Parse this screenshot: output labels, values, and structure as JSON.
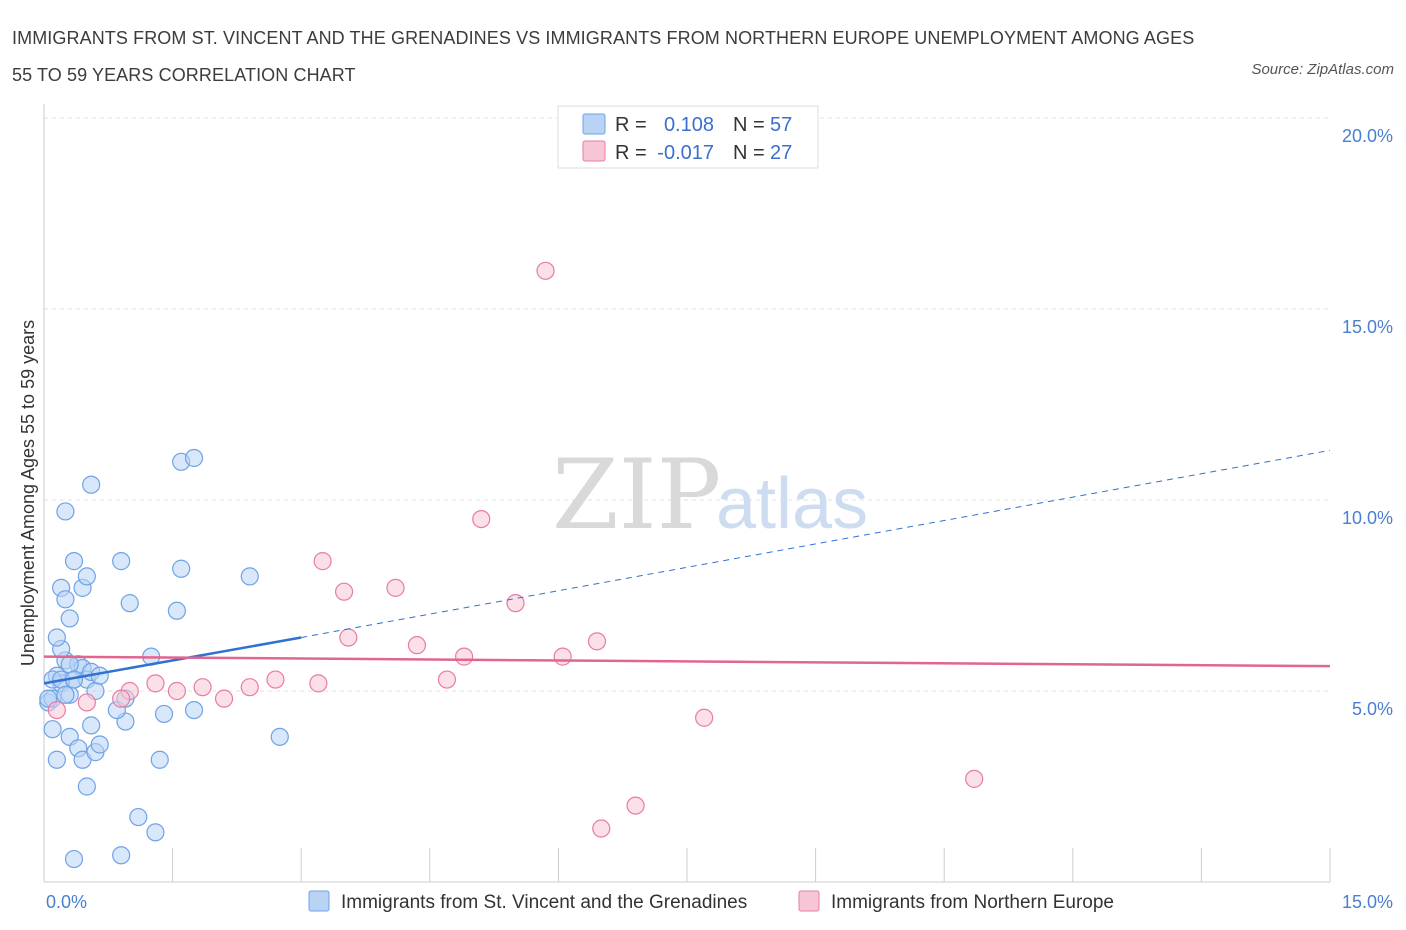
{
  "title": "IMMIGRANTS FROM ST. VINCENT AND THE GRENADINES VS IMMIGRANTS FROM NORTHERN EUROPE UNEMPLOYMENT AMONG AGES 55 TO 59 YEARS CORRELATION CHART",
  "source": "Source: ZipAtlas.com",
  "watermark": {
    "zip": "ZIP",
    "atlas": "atlas"
  },
  "colors": {
    "blue": "#6ea3e6",
    "blue_fill": "#b9d3f5",
    "pink": "#e87ca3",
    "pink_fill": "#f7c6d6",
    "blue_line": "#2f72d0",
    "pink_line": "#e0658f"
  },
  "legend": {
    "r_label": "R =",
    "n_label": "N =",
    "blue": {
      "r": "0.108",
      "n": "57"
    },
    "pink": {
      "r": "-0.017",
      "n": "27"
    }
  },
  "bottom_legend": {
    "blue": "Immigrants from St. Vincent and the Grenadines",
    "pink": "Immigrants from Northern Europe"
  },
  "chart_data": {
    "type": "scatter",
    "title": "IMMIGRANTS FROM ST. VINCENT AND THE GRENADINES VS IMMIGRANTS FROM NORTHERN EUROPE UNEMPLOYMENT AMONG AGES 55 TO 59 YEARS CORRELATION CHART",
    "xlabel": "",
    "ylabel": "Unemployment Among Ages 55 to 59 years",
    "xlim": [
      0,
      15
    ],
    "ylim": [
      0,
      20
    ],
    "x_tick_labels": {
      "min": "0.0%",
      "max": "15.0%"
    },
    "y_ticks": [
      {
        "value": 5,
        "label": "5.0%"
      },
      {
        "value": 10,
        "label": "10.0%"
      },
      {
        "value": 15,
        "label": "15.0%"
      },
      {
        "value": 20,
        "label": "20.0%"
      }
    ],
    "series": [
      {
        "name": "Immigrants from St. Vincent and the Grenadines",
        "r": 0.108,
        "n": 57,
        "trend": {
          "x0": 0,
          "y0": 5.2,
          "x1": 3.0,
          "y1": 6.4,
          "x_ext": 15.0,
          "y_ext": 11.3
        },
        "points": [
          [
            0.05,
            4.7
          ],
          [
            0.1,
            4.8
          ],
          [
            0.15,
            5.4
          ],
          [
            0.2,
            5.2
          ],
          [
            0.25,
            5.8
          ],
          [
            0.3,
            4.9
          ],
          [
            0.2,
            6.1
          ],
          [
            0.15,
            6.4
          ],
          [
            0.35,
            5.3
          ],
          [
            0.4,
            5.7
          ],
          [
            0.45,
            5.6
          ],
          [
            0.5,
            5.3
          ],
          [
            0.55,
            5.5
          ],
          [
            0.6,
            5.0
          ],
          [
            0.65,
            5.4
          ],
          [
            0.3,
            5.7
          ],
          [
            0.1,
            4.0
          ],
          [
            0.15,
            3.2
          ],
          [
            0.3,
            3.8
          ],
          [
            0.4,
            3.5
          ],
          [
            0.45,
            3.2
          ],
          [
            0.55,
            4.1
          ],
          [
            0.6,
            3.4
          ],
          [
            0.65,
            3.6
          ],
          [
            0.2,
            7.7
          ],
          [
            0.25,
            7.4
          ],
          [
            0.3,
            6.9
          ],
          [
            0.45,
            7.7
          ],
          [
            0.5,
            8.0
          ],
          [
            0.35,
            8.4
          ],
          [
            0.9,
            8.4
          ],
          [
            1.0,
            7.3
          ],
          [
            1.6,
            8.2
          ],
          [
            1.55,
            7.1
          ],
          [
            2.4,
            8.0
          ],
          [
            0.25,
            9.7
          ],
          [
            0.55,
            10.4
          ],
          [
            1.6,
            11.0
          ],
          [
            1.75,
            11.1
          ],
          [
            0.5,
            2.5
          ],
          [
            0.35,
            0.6
          ],
          [
            0.9,
            0.7
          ],
          [
            1.1,
            1.7
          ],
          [
            1.3,
            1.3
          ],
          [
            1.35,
            3.2
          ],
          [
            0.95,
            4.2
          ],
          [
            0.85,
            4.5
          ],
          [
            0.95,
            4.8
          ],
          [
            1.4,
            4.4
          ],
          [
            1.75,
            4.5
          ],
          [
            2.75,
            3.8
          ],
          [
            1.25,
            5.9
          ],
          [
            0.1,
            5.3
          ],
          [
            0.05,
            4.8
          ],
          [
            0.2,
            5.3
          ],
          [
            0.35,
            5.3
          ],
          [
            0.25,
            4.9
          ]
        ]
      },
      {
        "name": "Immigrants from Northern Europe",
        "r": -0.017,
        "n": 27,
        "trend": {
          "x0": 0,
          "y0": 5.9,
          "x1": 15.0,
          "y1": 5.65
        },
        "points": [
          [
            0.15,
            4.5
          ],
          [
            1.0,
            5.0
          ],
          [
            1.3,
            5.2
          ],
          [
            1.55,
            5.0
          ],
          [
            1.85,
            5.1
          ],
          [
            2.1,
            4.8
          ],
          [
            2.4,
            5.1
          ],
          [
            2.7,
            5.3
          ],
          [
            3.25,
            8.4
          ],
          [
            3.2,
            5.2
          ],
          [
            3.55,
            6.4
          ],
          [
            3.5,
            7.6
          ],
          [
            4.1,
            7.7
          ],
          [
            4.35,
            6.2
          ],
          [
            4.7,
            5.3
          ],
          [
            4.9,
            5.9
          ],
          [
            5.1,
            9.5
          ],
          [
            5.5,
            7.3
          ],
          [
            5.85,
            16.0
          ],
          [
            6.05,
            5.9
          ],
          [
            6.45,
            6.3
          ],
          [
            6.5,
            1.4
          ],
          [
            6.9,
            2.0
          ],
          [
            7.7,
            4.3
          ],
          [
            10.85,
            2.7
          ],
          [
            0.9,
            4.8
          ],
          [
            0.5,
            4.7
          ]
        ]
      }
    ]
  }
}
